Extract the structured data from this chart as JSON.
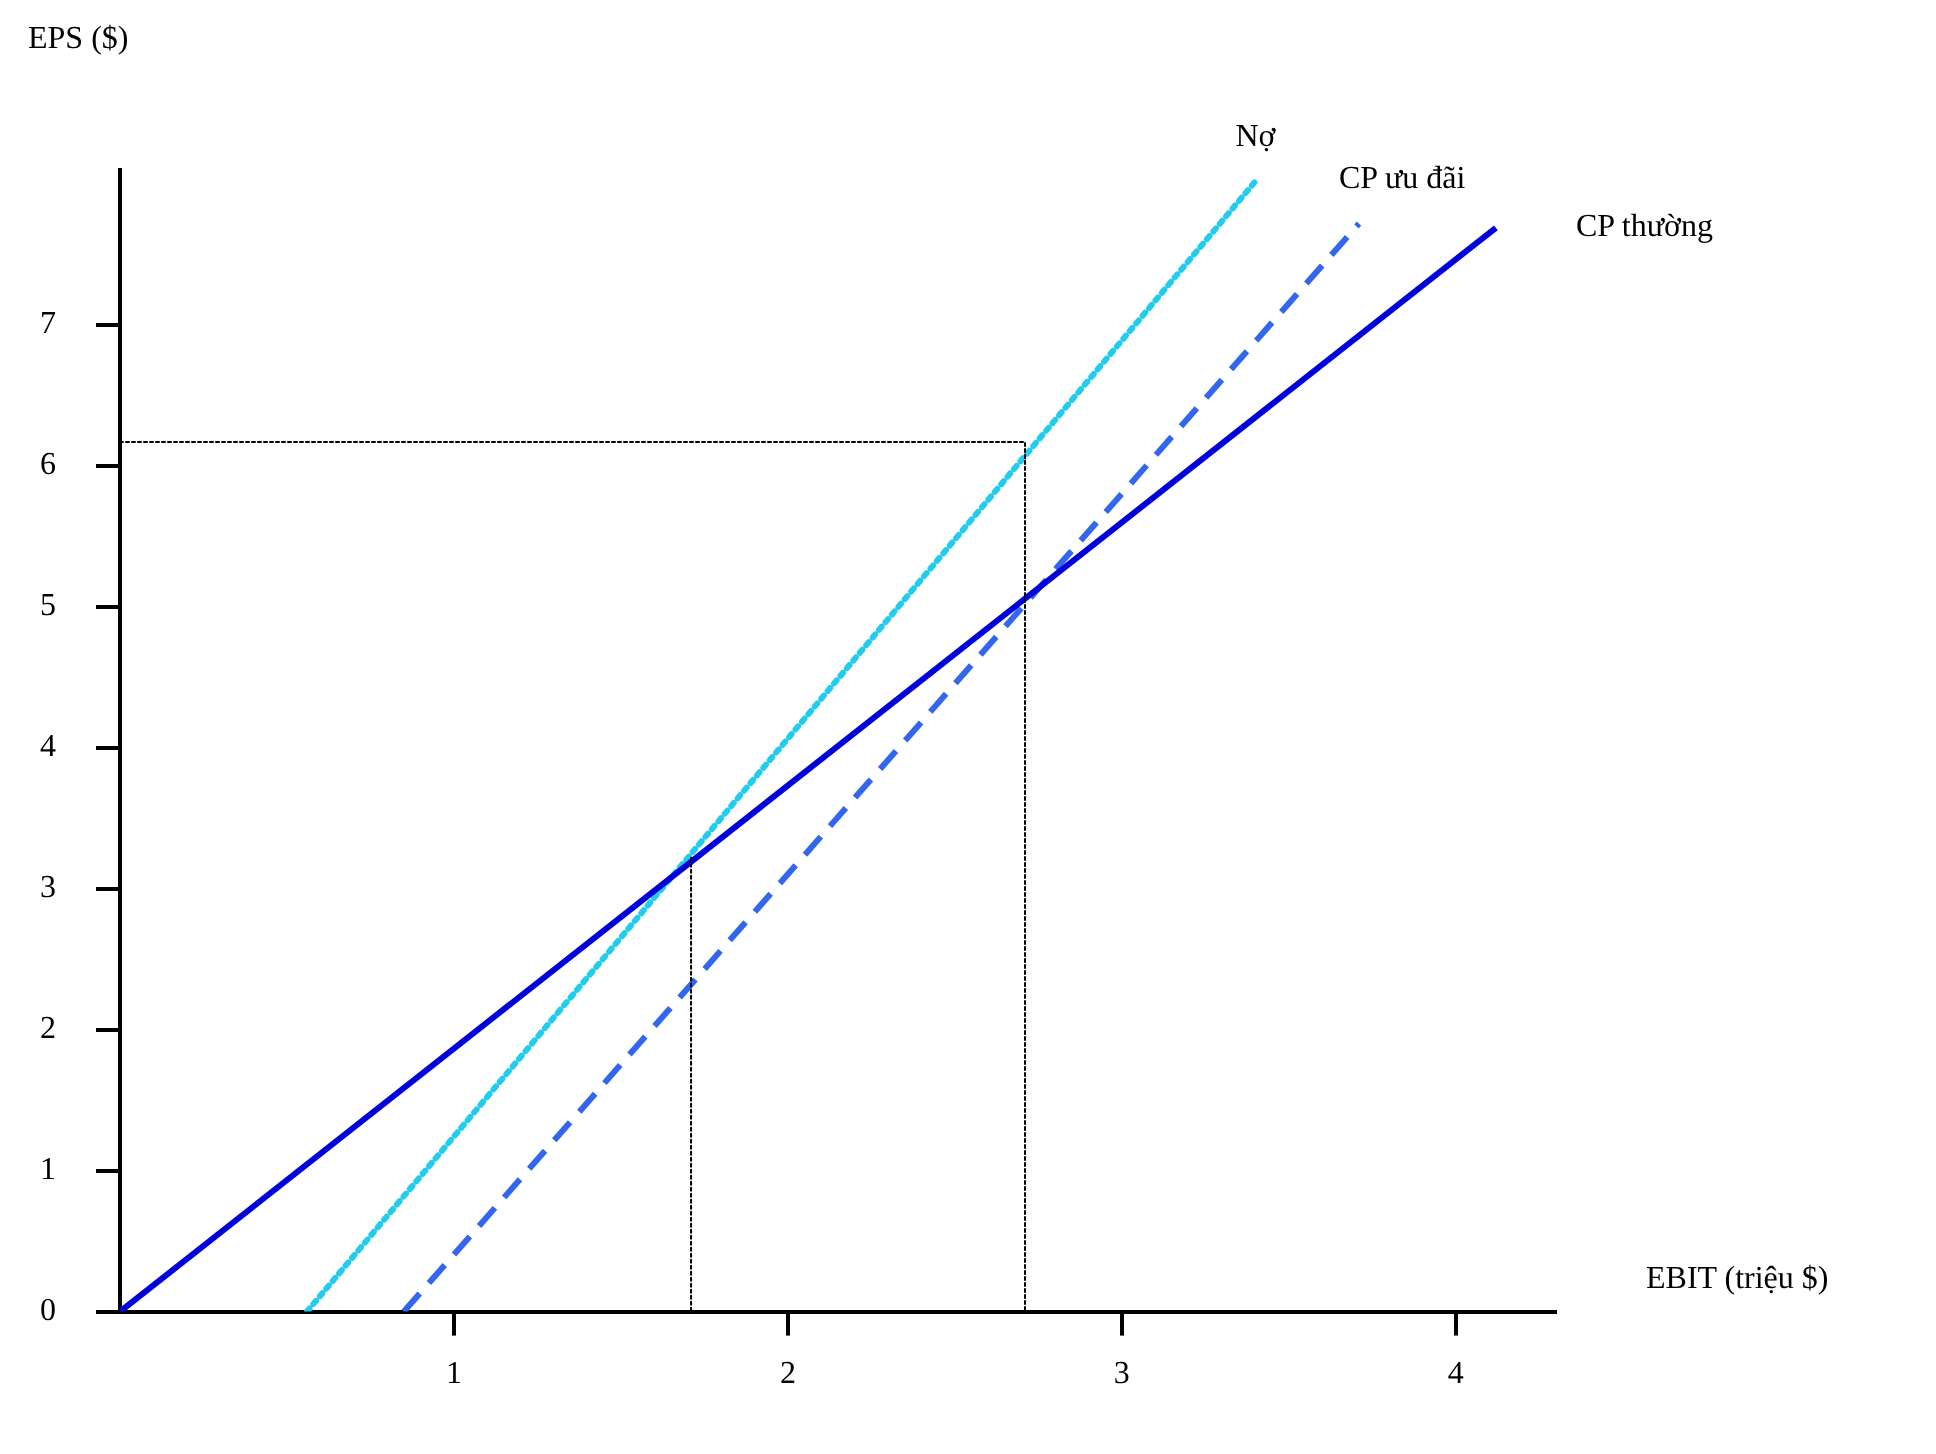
{
  "chart_data": {
    "type": "line",
    "xlabel": "EBIT (triệu $)",
    "ylabel": "EPS ($)",
    "xlim": [
      0,
      4.3
    ],
    "ylim": [
      0,
      8.1
    ],
    "xticks": [
      1,
      2,
      3,
      4
    ],
    "yticks": [
      0,
      1,
      2,
      3,
      4,
      5,
      6,
      7
    ],
    "grid": false,
    "legend": false,
    "marker": "none",
    "series": [
      {
        "name": "CP thường",
        "color": "#0000dd",
        "line_style": "solid",
        "x": [
          0,
          4.12
        ],
        "values": [
          0,
          7.69
        ]
      },
      {
        "name": "Nợ",
        "color": "#22ccee",
        "line_style": "dotted",
        "x": [
          0.56,
          3.4
        ],
        "values": [
          0,
          8.02
        ]
      },
      {
        "name": "CP ưu đãi",
        "color": "#3366ee",
        "line_style": "dashed",
        "x": [
          0.85,
          3.71
        ],
        "values": [
          0,
          7.72
        ]
      },
      {
        "color": "#000000",
        "line_style": "dotted",
        "x": [
          0,
          2.71,
          2.71
        ],
        "values": [
          6.17,
          6.17,
          0
        ]
      },
      {
        "color": "#000000",
        "line_style": "dotted",
        "x": [
          1.71,
          1.71
        ],
        "values": [
          3.22,
          0
        ]
      }
    ]
  }
}
